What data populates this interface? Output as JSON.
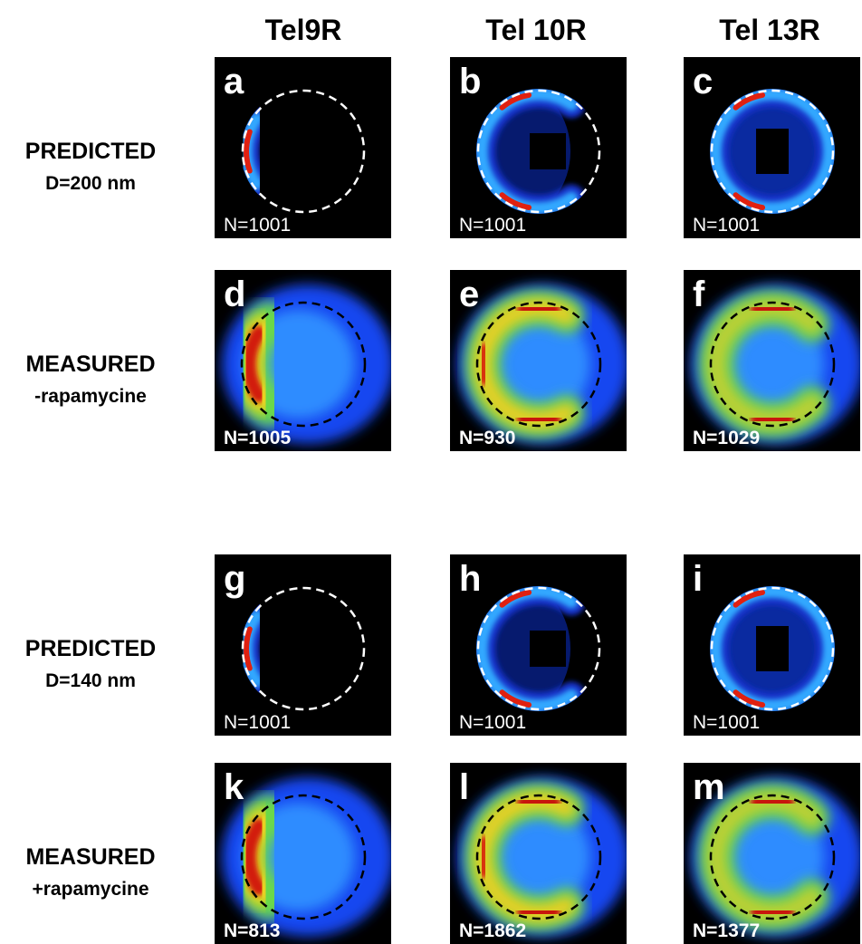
{
  "columns": [
    "Tel9R",
    "Tel 10R",
    "Tel 13R"
  ],
  "rows": [
    {
      "label": "PREDICTED",
      "sublabel": "D=200 nm",
      "panels": [
        {
          "letter": "a",
          "n": "N=1001"
        },
        {
          "letter": "b",
          "n": "N=1001"
        },
        {
          "letter": "c",
          "n": "N=1001"
        }
      ]
    },
    {
      "label": "MEASURED",
      "sublabel": "-rapamycine",
      "panels": [
        {
          "letter": "d",
          "n": "N=1005"
        },
        {
          "letter": "e",
          "n": "N=930"
        },
        {
          "letter": "f",
          "n": "N=1029"
        }
      ]
    },
    {
      "label": "PREDICTED",
      "sublabel": "D=140 nm",
      "panels": [
        {
          "letter": "g",
          "n": "N=1001"
        },
        {
          "letter": "h",
          "n": "N=1001"
        },
        {
          "letter": "i",
          "n": "N=1001"
        }
      ]
    },
    {
      "label": "MEASURED",
      "sublabel": "+rapamycine",
      "panels": [
        {
          "letter": "k",
          "n": "N=813"
        },
        {
          "letter": "l",
          "n": "N=1862"
        },
        {
          "letter": "m",
          "n": "N=1377"
        }
      ]
    }
  ]
}
